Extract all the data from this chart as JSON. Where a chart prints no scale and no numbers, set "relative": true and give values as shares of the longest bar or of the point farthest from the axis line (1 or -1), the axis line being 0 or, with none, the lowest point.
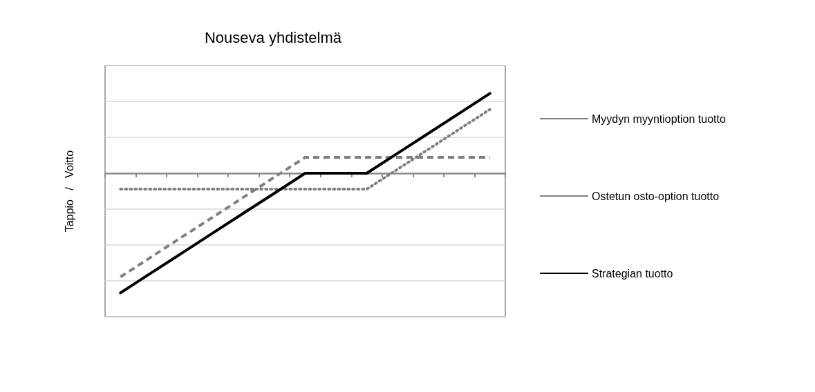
{
  "chart_data": {
    "type": "line",
    "title": "Nouseva yhdistelmä",
    "ylabel": "Tappio   /   Voitto",
    "relative": true,
    "grid": "y",
    "legend": "right",
    "marker": "none",
    "categories": [
      null,
      null,
      null,
      null,
      null,
      null,
      null,
      null,
      null,
      null,
      null,
      null,
      null
    ],
    "series": [
      {
        "name": "Myydyn myyntioption tuotto",
        "color": "#808080",
        "line_style": "dashed",
        "values": [
          -0.867,
          -0.7,
          -0.533,
          -0.367,
          -0.2,
          -0.033,
          0.133,
          0.133,
          0.133,
          0.133,
          0.133,
          0.133,
          0.133
        ]
      },
      {
        "name": "Ostetun osto-option tuotto",
        "color": "#808080",
        "line_style": "dotted",
        "values": [
          -0.133,
          -0.133,
          -0.133,
          -0.133,
          -0.133,
          -0.133,
          -0.133,
          -0.133,
          -0.133,
          0.033,
          0.2,
          0.367,
          0.533
        ]
      },
      {
        "name": "Strategian tuotto",
        "color": "#000000",
        "line_style": "solid",
        "values": [
          -1,
          -0.833,
          -0.667,
          -0.5,
          -0.333,
          -0.167,
          0,
          0,
          0,
          0.167,
          0.333,
          0.5,
          0.667
        ]
      }
    ]
  }
}
